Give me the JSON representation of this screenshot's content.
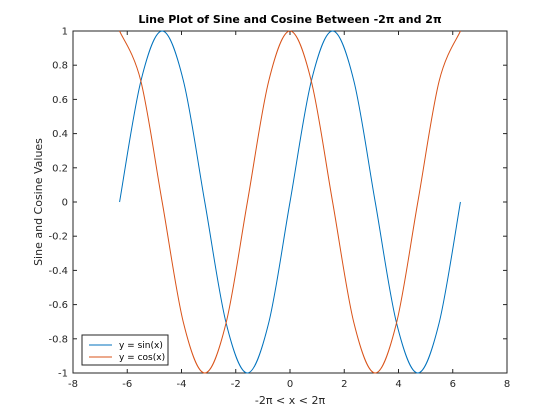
{
  "chart_data": {
    "type": "line",
    "title": "Line Plot of Sine and Cosine Between -2π and 2π",
    "xlabel": "-2π < x < 2π",
    "ylabel": "Sine and Cosine Values",
    "xlim": [
      -8,
      8
    ],
    "ylim": [
      -1,
      1
    ],
    "x_ticks": [
      -8,
      -6,
      -4,
      -2,
      0,
      2,
      4,
      6,
      8
    ],
    "x_tick_labels": [
      "-8",
      "-6",
      "-4",
      "-2",
      "0",
      "2",
      "4",
      "6",
      "8"
    ],
    "y_ticks": [
      -1,
      -0.8,
      -0.6,
      -0.4,
      -0.2,
      0,
      0.2,
      0.4,
      0.6,
      0.8,
      1
    ],
    "y_tick_labels": [
      "-1",
      "-0.8",
      "-0.6",
      "-0.4",
      "-0.2",
      "0",
      "0.2",
      "0.4",
      "0.6",
      "0.8",
      "1"
    ],
    "grid": false,
    "legend_position": "bottom-left",
    "series": [
      {
        "name": "y = sin(x)",
        "color": "#0072BD",
        "x": [
          -6.2832,
          -5.4978,
          -4.7124,
          -3.927,
          -3.1416,
          -2.3562,
          -1.5708,
          -0.7854,
          0,
          0.7854,
          1.5708,
          2.3562,
          3.1416,
          3.927,
          4.7124,
          5.4978,
          6.2832
        ],
        "y": [
          0,
          0.7071,
          1,
          0.7071,
          0,
          -0.7071,
          -1,
          -0.7071,
          0,
          0.7071,
          1,
          0.7071,
          0,
          -0.7071,
          -1,
          -0.7071,
          0
        ]
      },
      {
        "name": "y = cos(x)",
        "color": "#D95319",
        "x": [
          -6.2832,
          -5.4978,
          -4.7124,
          -3.927,
          -3.1416,
          -2.3562,
          -1.5708,
          -0.7854,
          0,
          0.7854,
          1.5708,
          2.3562,
          3.1416,
          3.927,
          4.7124,
          5.4978,
          6.2832
        ],
        "y": [
          1,
          0.7071,
          0,
          -0.7071,
          -1,
          -0.7071,
          0,
          0.7071,
          1,
          0.7071,
          0,
          -0.7071,
          -1,
          -0.7071,
          0,
          0.7071,
          1
        ]
      }
    ]
  }
}
